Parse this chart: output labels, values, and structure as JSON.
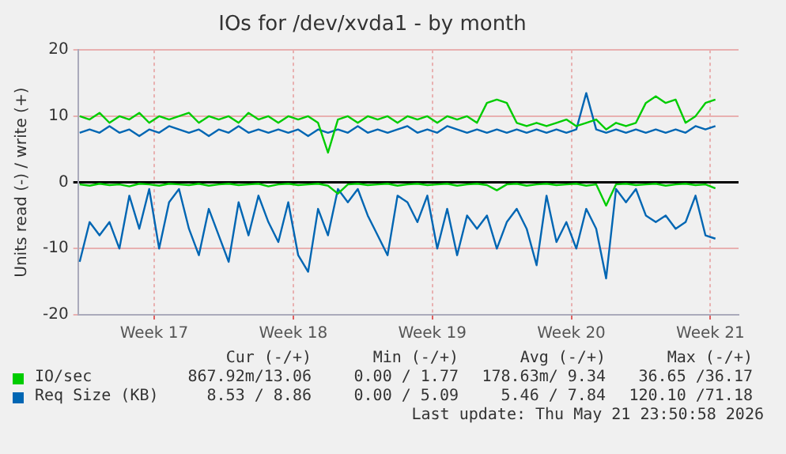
{
  "chart_data": {
    "type": "line",
    "title": "IOs for /dev/xvda1 - by month",
    "ylabel": "Units read (-) / write (+)",
    "x": [
      "2026-04-19T18:00",
      "2026-04-20T06:00",
      "2026-04-20T18:00",
      "2026-04-21T06:00",
      "2026-04-21T18:00",
      "2026-04-22T06:00",
      "2026-04-22T18:00",
      "2026-04-23T06:00",
      "2026-04-23T18:00",
      "2026-04-24T06:00",
      "2026-04-24T18:00",
      "2026-04-25T06:00",
      "2026-04-25T18:00",
      "2026-04-26T06:00",
      "2026-04-26T18:00",
      "2026-04-27T06:00",
      "2026-04-27T18:00",
      "2026-04-28T06:00",
      "2026-04-28T18:00",
      "2026-04-29T06:00",
      "2026-04-29T18:00",
      "2026-04-30T06:00",
      "2026-04-30T18:00",
      "2026-05-01T06:00",
      "2026-05-01T18:00",
      "2026-05-02T06:00",
      "2026-05-02T18:00",
      "2026-05-03T06:00",
      "2026-05-03T18:00",
      "2026-05-04T06:00",
      "2026-05-04T18:00",
      "2026-05-05T06:00",
      "2026-05-05T18:00",
      "2026-05-06T06:00",
      "2026-05-06T18:00",
      "2026-05-07T06:00",
      "2026-05-07T18:00",
      "2026-05-08T06:00",
      "2026-05-08T18:00",
      "2026-05-09T06:00",
      "2026-05-09T18:00",
      "2026-05-10T06:00",
      "2026-05-10T18:00",
      "2026-05-11T06:00",
      "2026-05-11T18:00",
      "2026-05-12T06:00",
      "2026-05-12T18:00",
      "2026-05-13T06:00",
      "2026-05-13T18:00",
      "2026-05-14T06:00",
      "2026-05-14T18:00",
      "2026-05-15T06:00",
      "2026-05-15T18:00",
      "2026-05-16T06:00",
      "2026-05-16T18:00",
      "2026-05-17T06:00",
      "2026-05-17T18:00",
      "2026-05-18T06:00",
      "2026-05-18T18:00",
      "2026-05-19T06:00",
      "2026-05-19T18:00",
      "2026-05-20T06:00",
      "2026-05-20T18:00",
      "2026-05-21T06:00",
      "2026-05-21T18:00"
    ],
    "series": [
      {
        "name": "IO/sec",
        "color": "#00cc00",
        "values": [
          10,
          9.5,
          10.5,
          9,
          10,
          9.5,
          10.5,
          9,
          10,
          9.5,
          10,
          10.5,
          9,
          10,
          9.5,
          10,
          9,
          10.5,
          9.5,
          10,
          9,
          10,
          9.5,
          10,
          9,
          4.5,
          9.5,
          10,
          9,
          10,
          9.5,
          10,
          9,
          10,
          9.5,
          10,
          9,
          10,
          9.5,
          10,
          9,
          12,
          12.5,
          12,
          9,
          8.5,
          9,
          8.5,
          9,
          9.5,
          8.5,
          9,
          9.5,
          8,
          9,
          8.5,
          9,
          12,
          13,
          12,
          12.5,
          9,
          10,
          12,
          12.5
        ]
      },
      {
        "color": "#00cc00",
        "values": [
          -0.3,
          -0.5,
          -0.2,
          -0.4,
          -0.3,
          -0.6,
          -0.2,
          -0.3,
          -0.5,
          -0.2,
          -0.3,
          -0.4,
          -0.2,
          -0.5,
          -0.3,
          -0.2,
          -0.4,
          -0.3,
          -0.2,
          -0.6,
          -0.3,
          -0.2,
          -0.4,
          -0.3,
          -0.2,
          -0.5,
          -1.7,
          -0.3,
          -0.2,
          -0.4,
          -0.3,
          -0.2,
          -0.5,
          -0.3,
          -0.2,
          -0.4,
          -0.3,
          -0.2,
          -0.5,
          -0.3,
          -0.2,
          -0.4,
          -1.2,
          -0.3,
          -0.2,
          -0.5,
          -0.3,
          -0.2,
          -0.4,
          -0.3,
          -0.2,
          -0.5,
          -0.3,
          -3.5,
          -0.3,
          -0.2,
          -0.4,
          -0.3,
          -0.2,
          -0.5,
          -0.3,
          -0.2,
          -0.4,
          -0.3,
          -0.9
        ]
      },
      {
        "name": "Req Size (KB)",
        "color": "#0066b3",
        "values": [
          7.5,
          8,
          7.5,
          8.5,
          7.5,
          8,
          7,
          8,
          7.5,
          8.5,
          8,
          7.5,
          8,
          7,
          8,
          7.5,
          8.5,
          7.5,
          8,
          7.5,
          8,
          7.5,
          8,
          7,
          8,
          7.5,
          8,
          7.5,
          8.5,
          7.5,
          8,
          7.5,
          8,
          8.5,
          7.5,
          8,
          7.5,
          8.5,
          8,
          7.5,
          8,
          7.5,
          8,
          7.5,
          8,
          7.5,
          8,
          7.5,
          8,
          7.5,
          8,
          13.5,
          8,
          7.5,
          8,
          7.5,
          8,
          7.5,
          8,
          7.5,
          8,
          7.5,
          8.5,
          8,
          8.5
        ]
      },
      {
        "color": "#0066b3",
        "values": [
          -12,
          -6,
          -8,
          -6,
          -10,
          -2,
          -7,
          -1,
          -10,
          -3,
          -1,
          -7,
          -11,
          -4,
          -8,
          -12,
          -3,
          -8,
          -2,
          -6,
          -9,
          -3,
          -11,
          -13.5,
          -4,
          -8,
          -1,
          -3,
          -1,
          -5,
          -8,
          -11,
          -2,
          -3,
          -6,
          -2,
          -10,
          -4,
          -11,
          -5,
          -7,
          -5,
          -10,
          -6,
          -4,
          -7,
          -12.5,
          -2,
          -9,
          -6,
          -10,
          -4,
          -7,
          -14.5,
          -1,
          -3,
          -1,
          -5,
          -6,
          -5,
          -7,
          -6,
          -2,
          -8,
          -8.5
        ]
      }
    ],
    "xlim": [
      "2026-04-19T16:00",
      "2026-05-22T22:00"
    ],
    "xticks": [
      {
        "value": "2026-04-23T12:00",
        "label": "Week 17"
      },
      {
        "value": "2026-04-30T12:00",
        "label": "Week 18"
      },
      {
        "value": "2026-05-07T12:00",
        "label": "Week 19"
      },
      {
        "value": "2026-05-14T12:00",
        "label": "Week 20"
      },
      {
        "value": "2026-05-21T12:00",
        "label": "Week 21"
      }
    ],
    "ylim": [
      -20,
      20
    ],
    "yticks": [
      -20,
      -10,
      0,
      10,
      20
    ],
    "grid": true,
    "marker": "none",
    "legend": "bottom",
    "annotations": [
      "Cur (-/+)",
      "Min (-/+)",
      "Avg (-/+)",
      "Max (-/+)",
      "867.92m/13.06",
      "0.00 / 1.77",
      "178.63m/ 9.34",
      "36.65 /36.17",
      "8.53 / 8.86",
      "0.00 / 5.09",
      "5.46 / 7.84",
      "120.10 /71.18",
      "Last update: Thu May 21 23:50:58 2026"
    ]
  }
}
